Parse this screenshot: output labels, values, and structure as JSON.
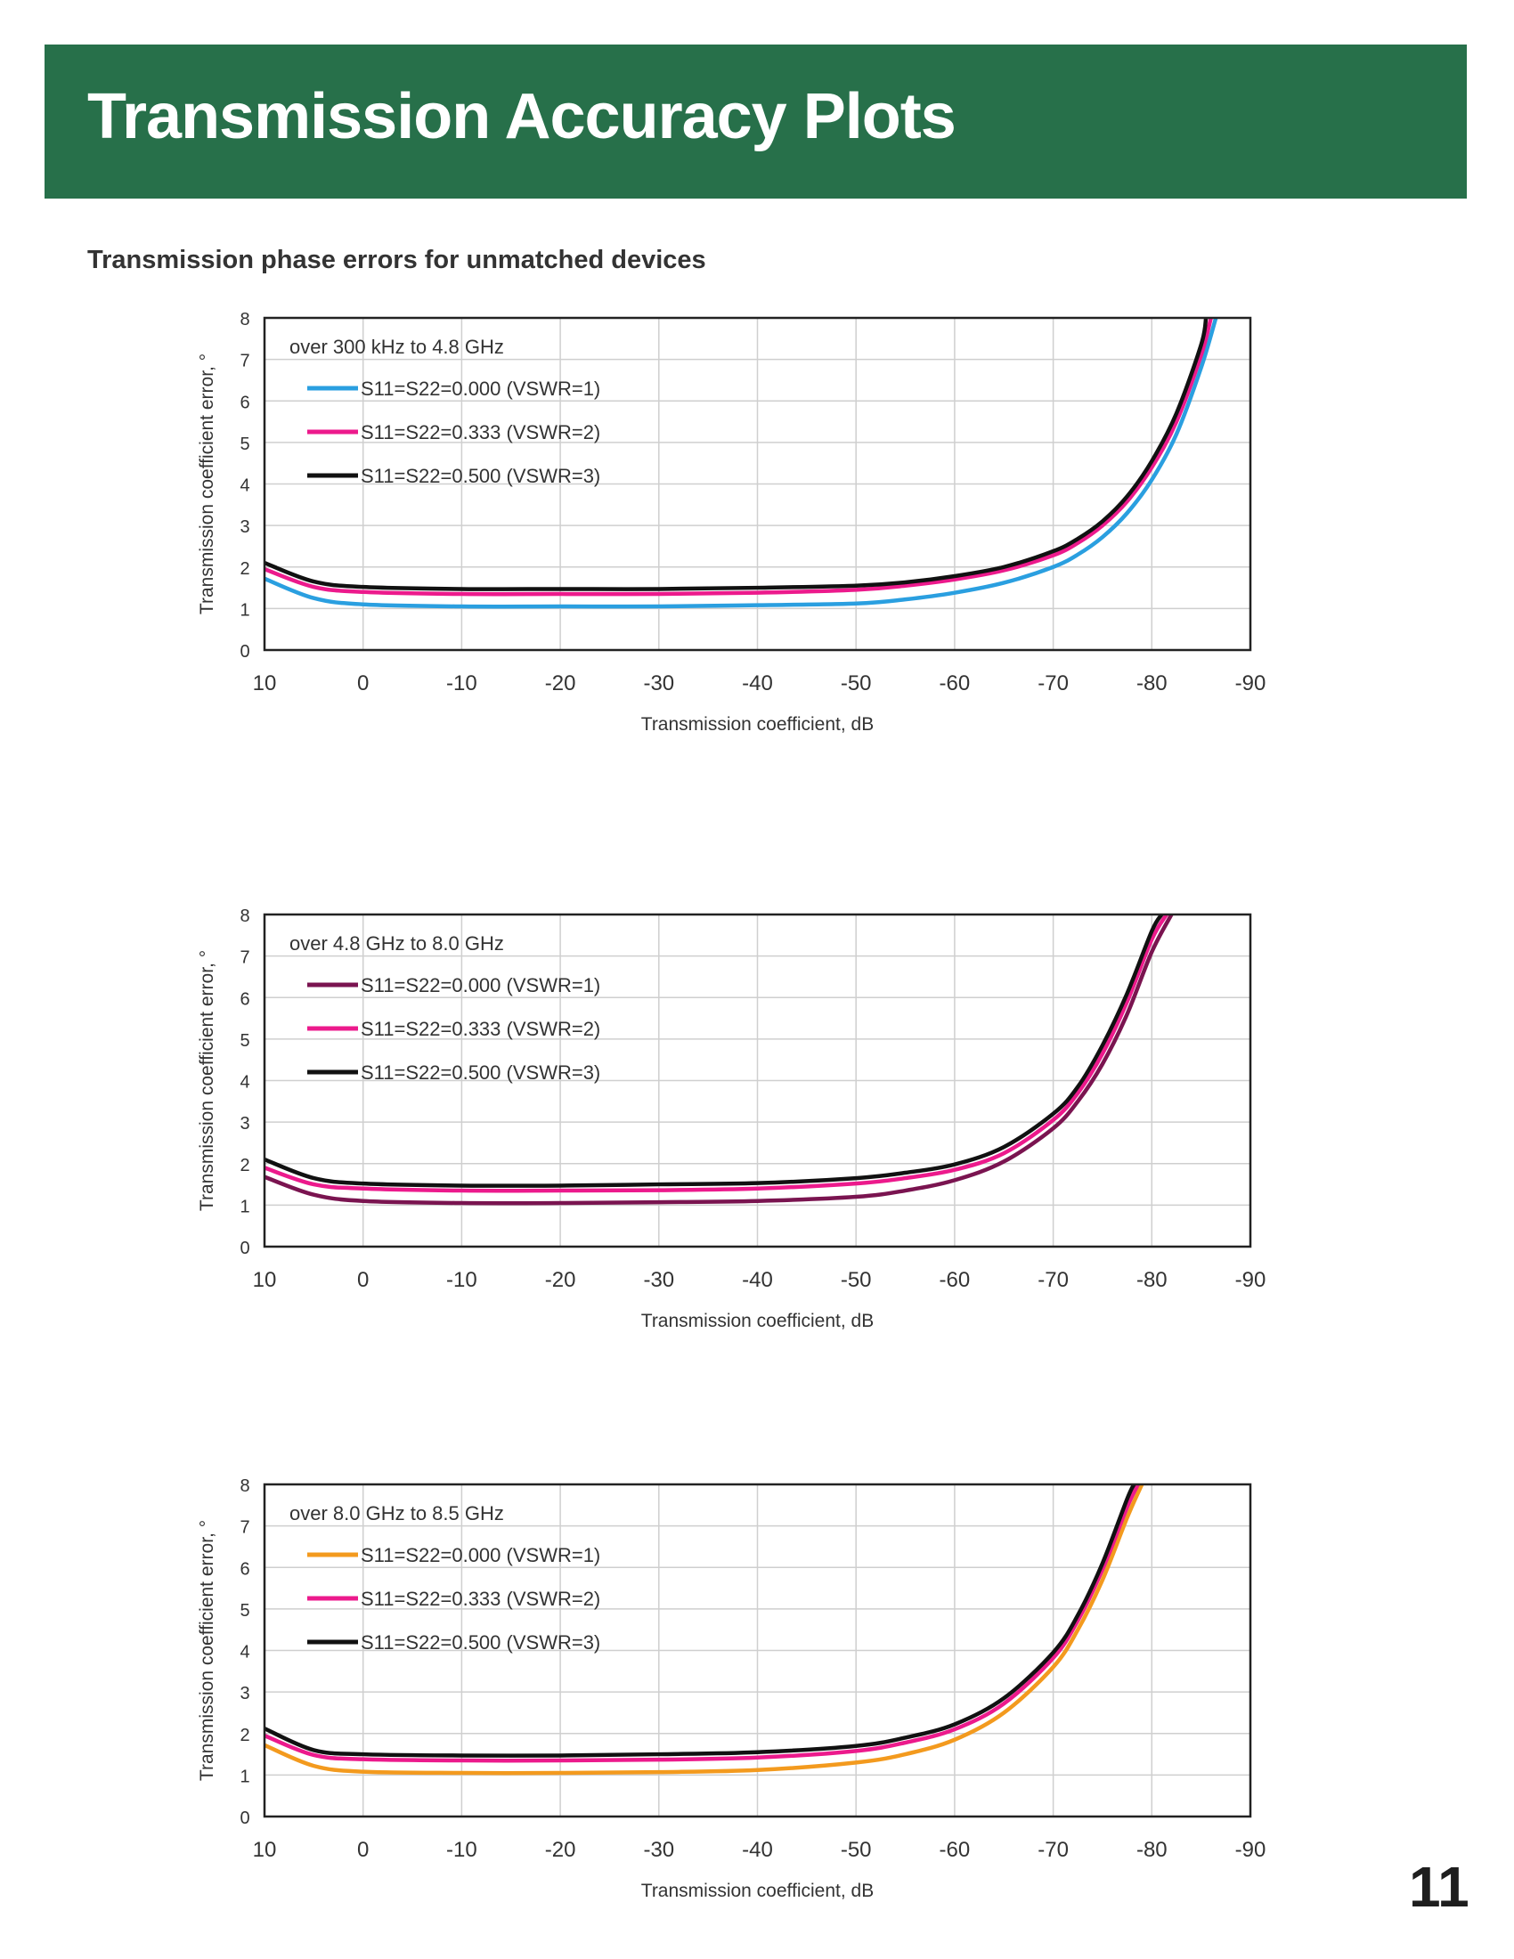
{
  "page": {
    "title": "Transmission Accuracy Plots",
    "subtitle": "Transmission phase errors for unmatched devices",
    "page_number": "11"
  },
  "chart_data": [
    {
      "type": "line",
      "annotation": "over 300 kHz to 4.8 GHz",
      "xlabel": "Transmission coefficient, dB",
      "ylabel": "Transmission coefficient error, °",
      "xlim": [
        10,
        -90
      ],
      "ylim": [
        0,
        8
      ],
      "x_ticks": [
        10,
        0,
        -10,
        -20,
        -30,
        -40,
        -50,
        -60,
        -70,
        -80,
        -90
      ],
      "y_ticks": [
        0,
        1,
        2,
        3,
        4,
        5,
        6,
        7,
        8
      ],
      "grid": true,
      "legend_position": "top-left",
      "series": [
        {
          "name": "S11=S22=0.000 (VSWR=1)",
          "color": "#2a9fe0",
          "x": [
            10,
            5,
            0,
            -10,
            -20,
            -30,
            -40,
            -50,
            -55,
            -60,
            -65,
            -70,
            -72.5,
            -75,
            -77.5,
            -80,
            -82.5,
            -85,
            -86.5
          ],
          "y": [
            1.72,
            1.25,
            1.1,
            1.05,
            1.05,
            1.05,
            1.08,
            1.12,
            1.22,
            1.38,
            1.62,
            2.0,
            2.3,
            2.72,
            3.3,
            4.1,
            5.2,
            6.8,
            8.0
          ]
        },
        {
          "name": "S11=S22=0.333 (VSWR=2)",
          "color": "#ec1a8c",
          "x": [
            10,
            5,
            0,
            -10,
            -20,
            -30,
            -40,
            -50,
            -55,
            -60,
            -65,
            -70,
            -72.5,
            -75,
            -77.5,
            -80,
            -82.5,
            -85,
            -86
          ],
          "y": [
            1.95,
            1.52,
            1.4,
            1.35,
            1.35,
            1.35,
            1.38,
            1.45,
            1.55,
            1.7,
            1.92,
            2.28,
            2.58,
            3.0,
            3.58,
            4.4,
            5.5,
            7.1,
            8.0
          ]
        },
        {
          "name": "S11=S22=0.500 (VSWR=3)",
          "color": "#111111",
          "x": [
            10,
            5,
            0,
            -10,
            -20,
            -30,
            -40,
            -50,
            -55,
            -60,
            -65,
            -70,
            -72.5,
            -75,
            -77.5,
            -80,
            -82.5,
            -85,
            -85.5
          ],
          "y": [
            2.1,
            1.65,
            1.52,
            1.47,
            1.47,
            1.47,
            1.5,
            1.55,
            1.63,
            1.78,
            2.0,
            2.38,
            2.68,
            3.1,
            3.7,
            4.55,
            5.7,
            7.35,
            8.0
          ]
        }
      ]
    },
    {
      "type": "line",
      "annotation": "over 4.8 GHz to 8.0 GHz",
      "xlabel": "Transmission coefficient, dB",
      "ylabel": "Transmission coefficient error, °",
      "xlim": [
        10,
        -90
      ],
      "ylim": [
        0,
        8
      ],
      "x_ticks": [
        10,
        0,
        -10,
        -20,
        -30,
        -40,
        -50,
        -60,
        -70,
        -80,
        -90
      ],
      "y_ticks": [
        0,
        1,
        2,
        3,
        4,
        5,
        6,
        7,
        8
      ],
      "grid": true,
      "legend_position": "top-left",
      "series": [
        {
          "name": "S11=S22=0.000 (VSWR=1)",
          "color": "#7a1450",
          "x": [
            10,
            5,
            0,
            -10,
            -20,
            -30,
            -40,
            -50,
            -55,
            -60,
            -65,
            -70,
            -72.5,
            -75,
            -77.5,
            -80,
            -82
          ],
          "y": [
            1.68,
            1.25,
            1.1,
            1.05,
            1.05,
            1.07,
            1.1,
            1.2,
            1.35,
            1.6,
            2.05,
            2.85,
            3.5,
            4.4,
            5.6,
            7.1,
            8.0
          ]
        },
        {
          "name": "S11=S22=0.333 (VSWR=2)",
          "color": "#ec1a8c",
          "x": [
            10,
            5,
            0,
            -10,
            -20,
            -30,
            -40,
            -50,
            -55,
            -60,
            -65,
            -70,
            -72.5,
            -75,
            -77.5,
            -80,
            -81.5
          ],
          "y": [
            1.9,
            1.5,
            1.4,
            1.35,
            1.35,
            1.36,
            1.4,
            1.52,
            1.65,
            1.85,
            2.25,
            3.05,
            3.7,
            4.65,
            5.9,
            7.4,
            8.0
          ]
        },
        {
          "name": "S11=S22=0.500 (VSWR=3)",
          "color": "#111111",
          "x": [
            10,
            5,
            0,
            -10,
            -20,
            -30,
            -40,
            -50,
            -55,
            -60,
            -65,
            -70,
            -72.5,
            -75,
            -77.5,
            -80,
            -81
          ],
          "y": [
            2.1,
            1.65,
            1.52,
            1.47,
            1.47,
            1.5,
            1.53,
            1.65,
            1.78,
            1.98,
            2.4,
            3.2,
            3.85,
            4.85,
            6.1,
            7.6,
            8.0
          ]
        }
      ]
    },
    {
      "type": "line",
      "annotation": "over 8.0 GHz to 8.5 GHz",
      "xlabel": "Transmission coefficient, dB",
      "ylabel": "Transmission coefficient error, °",
      "xlim": [
        10,
        -90
      ],
      "ylim": [
        0,
        8
      ],
      "x_ticks": [
        10,
        0,
        -10,
        -20,
        -30,
        -40,
        -50,
        -60,
        -70,
        -80,
        -90
      ],
      "y_ticks": [
        0,
        1,
        2,
        3,
        4,
        5,
        6,
        7,
        8
      ],
      "grid": true,
      "legend_position": "top-left",
      "series": [
        {
          "name": "S11=S22=0.000 (VSWR=1)",
          "color": "#f39a1e",
          "x": [
            10,
            5,
            0,
            -10,
            -20,
            -30,
            -40,
            -50,
            -55,
            -60,
            -65,
            -70,
            -72.5,
            -75,
            -77.5,
            -79
          ],
          "y": [
            1.72,
            1.22,
            1.08,
            1.05,
            1.05,
            1.07,
            1.12,
            1.3,
            1.5,
            1.85,
            2.5,
            3.6,
            4.5,
            5.7,
            7.2,
            8.0
          ]
        },
        {
          "name": "S11=S22=0.333 (VSWR=2)",
          "color": "#ec1a8c",
          "x": [
            10,
            5,
            0,
            -10,
            -20,
            -30,
            -40,
            -50,
            -55,
            -60,
            -65,
            -70,
            -72.5,
            -75,
            -77.5,
            -78.6
          ],
          "y": [
            1.95,
            1.48,
            1.38,
            1.35,
            1.35,
            1.37,
            1.42,
            1.58,
            1.78,
            2.1,
            2.72,
            3.82,
            4.72,
            5.95,
            7.45,
            8.0
          ]
        },
        {
          "name": "S11=S22=0.500 (VSWR=3)",
          "color": "#111111",
          "x": [
            10,
            5,
            0,
            -10,
            -20,
            -30,
            -40,
            -50,
            -55,
            -60,
            -65,
            -70,
            -72.5,
            -75,
            -77.5,
            -78.2
          ],
          "y": [
            2.12,
            1.6,
            1.5,
            1.47,
            1.47,
            1.5,
            1.55,
            1.7,
            1.9,
            2.22,
            2.85,
            3.95,
            4.85,
            6.1,
            7.65,
            8.0
          ]
        }
      ]
    }
  ]
}
